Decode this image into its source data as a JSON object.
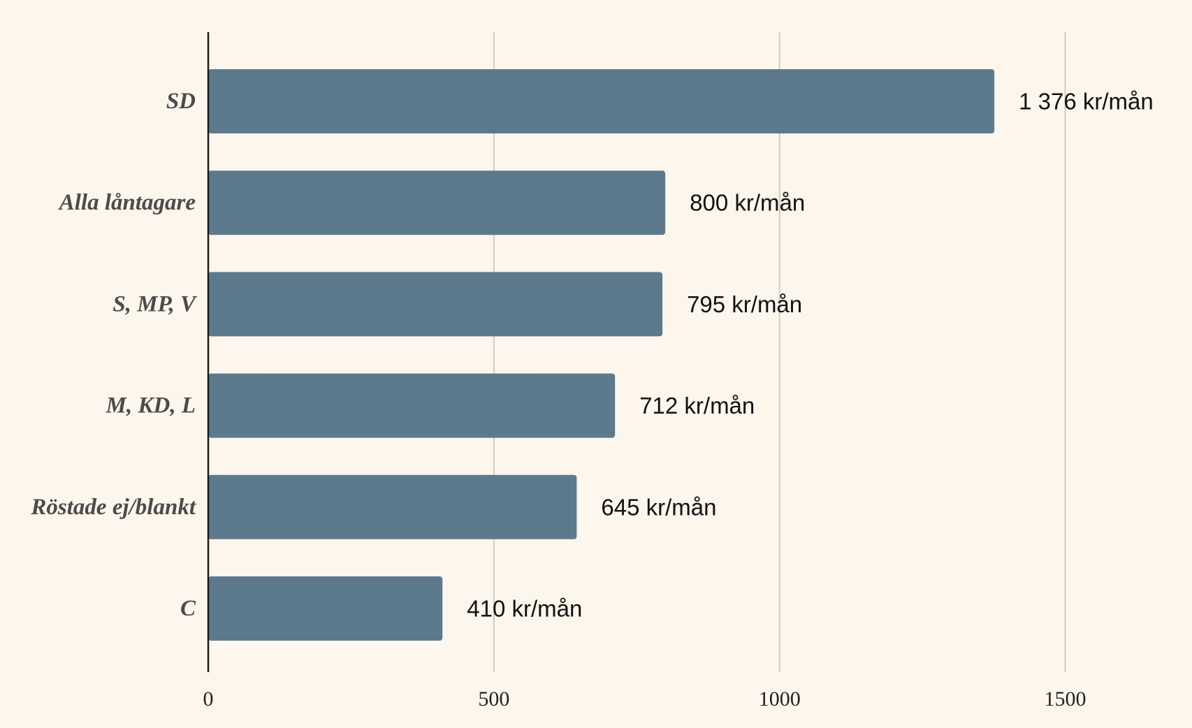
{
  "chart_data": {
    "type": "bar",
    "orientation": "horizontal",
    "categories": [
      "SD",
      "Alla låntagare",
      "S, MP, V",
      "M, KD, L",
      "Röstade ej/blankt",
      "C"
    ],
    "values": [
      1376,
      800,
      795,
      712,
      645,
      410
    ],
    "value_labels": [
      "1 376 kr/mån",
      "800 kr/mån",
      "795 kr/mån",
      "712 kr/mån",
      "645 kr/mån",
      "410 kr/mån"
    ],
    "xlim": [
      0,
      1750
    ],
    "x_ticks": [
      0,
      500,
      1000,
      1500
    ],
    "x_tick_labels": [
      "0",
      "500",
      "1000",
      "1500"
    ],
    "grid": true,
    "legend": "none",
    "colors": {
      "bar": "#5d7a8d",
      "background": "#fcf6ec",
      "grid": "#cfcdc6",
      "axis": "#1a1a1a"
    }
  }
}
